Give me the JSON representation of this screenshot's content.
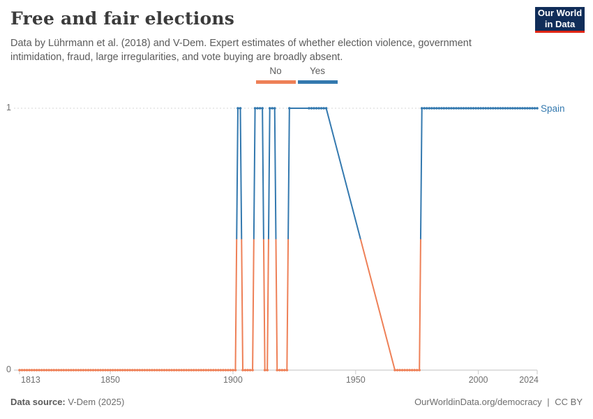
{
  "header": {
    "title": "Free and fair elections",
    "subtitle_lines": [
      "Data by Lührmann et al. (2018) and V-Dem. Expert estimates of whether election violence, government",
      "intimidation, fraud, large irregularities, and vote buying are broadly absent."
    ],
    "logo": {
      "line1": "Our World",
      "line2": "in Data",
      "bg": "#102d59",
      "accent": "#e02614"
    }
  },
  "chart_data": {
    "type": "line",
    "title": "Free and fair elections",
    "entity": "Spain",
    "xlim": [
      1813,
      2024
    ],
    "ylim": [
      0,
      1
    ],
    "x_ticks": [
      1813,
      1850,
      1900,
      1950,
      2000,
      2024
    ],
    "y_ticks": [
      0,
      1
    ],
    "grid": "dashed line at y=1, solid axis at y=0",
    "legend_position": "top-center",
    "legend": [
      {
        "label": "No",
        "value": 0,
        "color": "#ee8057"
      },
      {
        "label": "Yes",
        "value": 1,
        "color": "#3479af"
      }
    ],
    "interpolation_note": "points yearly within segments; gaps 1924-1930 and 1939-1965 connected directly",
    "segments": [
      {
        "start": 1813,
        "end": 1901,
        "value": 0
      },
      {
        "start": 1902,
        "end": 1903,
        "value": 1
      },
      {
        "start": 1904,
        "end": 1908,
        "value": 0
      },
      {
        "start": 1909,
        "end": 1912,
        "value": 1
      },
      {
        "start": 1913,
        "end": 1914,
        "value": 0
      },
      {
        "start": 1915,
        "end": 1917,
        "value": 1
      },
      {
        "start": 1918,
        "end": 1922,
        "value": 0
      },
      {
        "start": 1923,
        "end": 1923,
        "value": 1
      },
      {
        "start": 1931,
        "end": 1938,
        "value": 1
      },
      {
        "start": 1966,
        "end": 1976,
        "value": 0
      },
      {
        "start": 1977,
        "end": 2024,
        "value": 1
      }
    ]
  },
  "series_label": {
    "text": "Spain",
    "color": "#3479af"
  },
  "footer": {
    "source_prefix": "Data source:",
    "source": "V-Dem (2025)",
    "link": "OurWorldinData.org/democracy",
    "separator": "|",
    "license": "CC BY"
  }
}
